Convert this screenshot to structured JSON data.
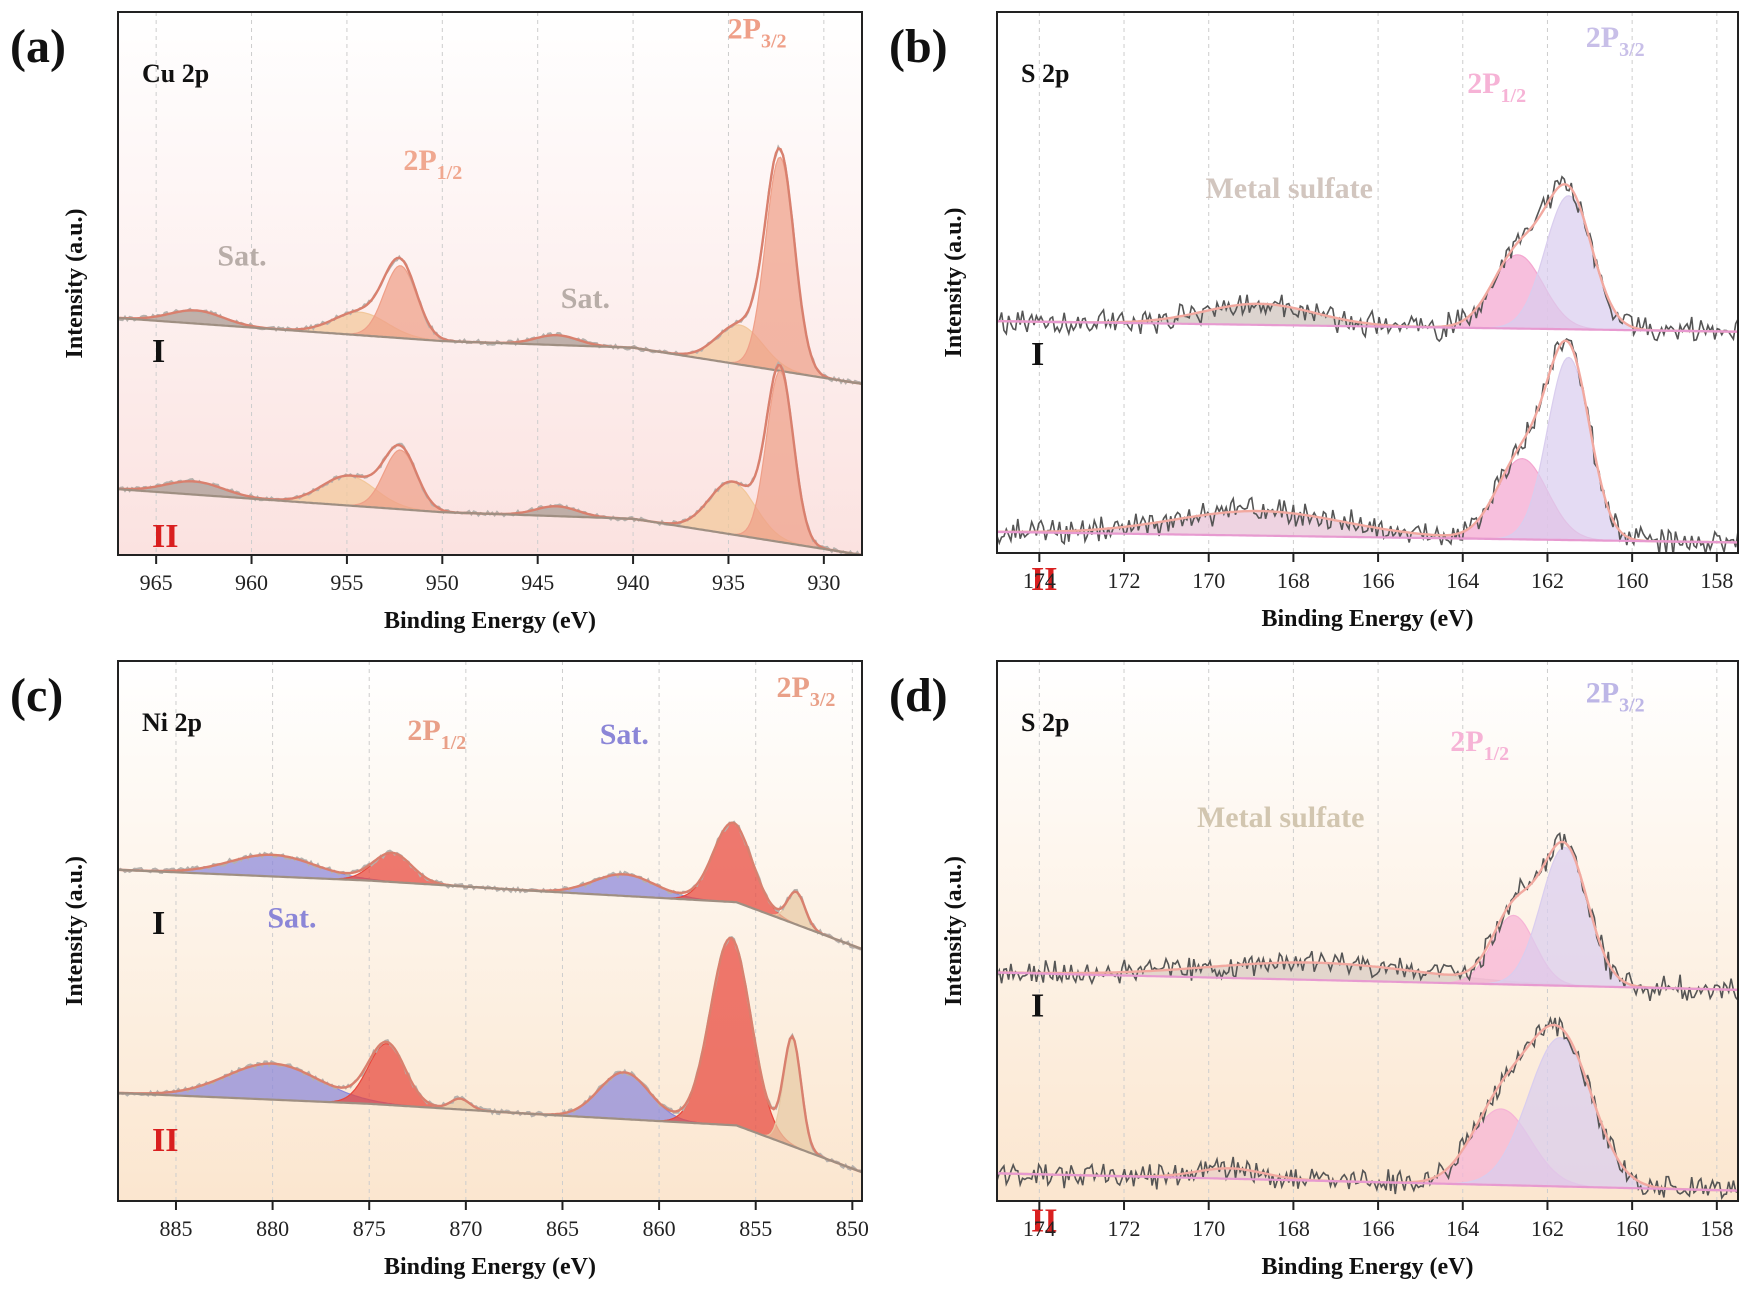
{
  "chart_data": [
    {
      "id": "a",
      "type": "line",
      "panel_label": "(a)",
      "element": "Cu 2p",
      "xlabel": "Binding Energy (eV)",
      "ylabel": "Intensity (a.u.)",
      "xlim": [
        967,
        928
      ],
      "xticks": [
        965,
        960,
        955,
        950,
        945,
        940,
        935,
        930
      ],
      "background": "pink",
      "baseline": [
        {
          "x": 967,
          "y": 0.0
        },
        {
          "x": 950,
          "y": -0.07
        },
        {
          "x": 940,
          "y": -0.09
        },
        {
          "x": 928,
          "y": -0.2
        }
      ],
      "spectra": [
        {
          "label": "I",
          "label_color": "#111111",
          "offset": 0.52,
          "components": [
            {
              "name": "Sat.",
              "center": 962.9,
              "height": 0.04,
              "width": 1.4,
              "color": "#a89890"
            },
            {
              "name": "Sat.",
              "center": 944.0,
              "height": 0.03,
              "width": 1.1,
              "color": "#a89890"
            },
            {
              "name": "2P1/2 satellite",
              "center": 954.3,
              "height": 0.07,
              "width": 1.4,
              "color": "#f2c79a"
            },
            {
              "name": "2P1/2",
              "center": 952.2,
              "height": 0.22,
              "width": 0.85,
              "color": "#ef9f88"
            },
            {
              "name": "2P3/2 satellite",
              "center": 934.4,
              "height": 0.12,
              "width": 1.2,
              "color": "#f2c79a"
            },
            {
              "name": "2P3/2",
              "center": 932.3,
              "height": 0.65,
              "width": 0.75,
              "color": "#ef9f88"
            }
          ]
        },
        {
          "label": "II",
          "label_color": "#d91f1f",
          "offset": 0.0,
          "components": [
            {
              "name": "Sat.",
              "center": 963.0,
              "height": 0.04,
              "width": 1.5,
              "color": "#a89890"
            },
            {
              "name": "Sat.",
              "center": 944.0,
              "height": 0.03,
              "width": 1.1,
              "color": "#a89890"
            },
            {
              "name": "2P1/2 satellite",
              "center": 954.9,
              "height": 0.09,
              "width": 1.4,
              "color": "#f2c79a"
            },
            {
              "name": "2P1/2",
              "center": 952.2,
              "height": 0.18,
              "width": 0.85,
              "color": "#ef9f88"
            },
            {
              "name": "2P3/2 satellite",
              "center": 934.8,
              "height": 0.16,
              "width": 1.2,
              "color": "#f2c79a"
            },
            {
              "name": "2P3/2",
              "center": 932.3,
              "height": 0.52,
              "width": 0.7,
              "color": "#ef9f88"
            }
          ]
        }
      ],
      "annotations": [
        {
          "text": "2P",
          "sub": "3/2",
          "x": 933.5,
          "y": 1.37,
          "color": "#ef9f88"
        },
        {
          "text": "2P",
          "sub": "1/2",
          "x": 950.5,
          "y": 0.97,
          "color": "#f0a890"
        },
        {
          "text": "Sat.",
          "x": 960.5,
          "y": 0.68,
          "color": "#b8ada8"
        },
        {
          "text": "Sat.",
          "x": 942.5,
          "y": 0.55,
          "color": "#b8ada8"
        }
      ]
    },
    {
      "id": "b",
      "type": "line",
      "panel_label": "(b)",
      "element": "S 2p",
      "xlabel": "Binding Energy (eV)",
      "ylabel": "Intensity (a.u.)",
      "xlim": [
        175,
        157.5
      ],
      "xticks": [
        174,
        172,
        170,
        168,
        166,
        164,
        162,
        160,
        158
      ],
      "background": "white",
      "baseline": [
        {
          "x": 175,
          "y": 0.0
        },
        {
          "x": 157.5,
          "y": -0.03
        }
      ],
      "spectra": [
        {
          "label": "I",
          "label_color": "#111111",
          "offset": 0.6,
          "components": [
            {
              "name": "Metal sulfate",
              "center": 168.8,
              "height": 0.06,
              "width": 1.3,
              "color": "#cfc3bd"
            },
            {
              "name": "2P1/2",
              "center": 162.7,
              "height": 0.21,
              "width": 0.6,
              "color": "#f4a6d0"
            },
            {
              "name": "2P3/2",
              "center": 161.5,
              "height": 0.38,
              "width": 0.55,
              "color": "#d9cdee"
            }
          ]
        },
        {
          "label": "II",
          "label_color": "#d91f1f",
          "offset": 0.0,
          "components": [
            {
              "name": "Metal sulfate",
              "center": 168.8,
              "height": 0.07,
              "width": 2.0,
              "color": "#e8c2d6"
            },
            {
              "name": "2P1/2",
              "center": 162.6,
              "height": 0.23,
              "width": 0.6,
              "color": "#f4a6d0"
            },
            {
              "name": "2P3/2",
              "center": 161.5,
              "height": 0.52,
              "width": 0.5,
              "color": "#d9cdee"
            }
          ]
        }
      ],
      "annotations": [
        {
          "text": "2P",
          "sub": "3/2",
          "x": 160.4,
          "y": 1.38,
          "color": "#c8bfe8"
        },
        {
          "text": "2P",
          "sub": "1/2",
          "x": 163.2,
          "y": 1.25,
          "color": "#f6b3d6"
        },
        {
          "text": "Metal sulfate",
          "x": 168.1,
          "y": 0.95,
          "color": "#d2c6bf"
        }
      ]
    },
    {
      "id": "c",
      "type": "line",
      "panel_label": "(c)",
      "element": "Ni 2p",
      "xlabel": "Binding Energy (eV)",
      "ylabel": "Intensity (a.u.)",
      "xlim": [
        888,
        849.5
      ],
      "xticks": [
        885,
        880,
        875,
        870,
        865,
        860,
        855,
        850
      ],
      "background": "peach",
      "baseline": [
        {
          "x": 888,
          "y": 0.0
        },
        {
          "x": 875,
          "y": -0.03
        },
        {
          "x": 866,
          "y": -0.06
        },
        {
          "x": 856,
          "y": -0.09
        },
        {
          "x": 849.5,
          "y": -0.22
        }
      ],
      "spectra": [
        {
          "label": "I",
          "label_color": "#111111",
          "offset": 0.62,
          "components": [
            {
              "name": "Sat.",
              "center": 880.0,
              "height": 0.06,
              "width": 2.2,
              "color": "#8a87da"
            },
            {
              "name": "2P1/2",
              "center": 873.8,
              "height": 0.08,
              "width": 1.0,
              "color": "#e8473c"
            },
            {
              "name": "Sat.",
              "center": 861.8,
              "height": 0.06,
              "width": 1.6,
              "color": "#8a87da"
            },
            {
              "name": "2P3/2",
              "center": 856.2,
              "height": 0.22,
              "width": 1.0,
              "color": "#e8473c"
            },
            {
              "name": "2P3/2 shoulder",
              "center": 852.9,
              "height": 0.09,
              "width": 0.45,
              "color": "#e8c9a4"
            }
          ]
        },
        {
          "label": "II",
          "label_color": "#d91f1f",
          "offset": 0.0,
          "components": [
            {
              "name": "Sat.",
              "center": 880.0,
              "height": 0.1,
              "width": 2.4,
              "color": "#8a87da"
            },
            {
              "name": "2P1/2",
              "center": 874.1,
              "height": 0.17,
              "width": 0.95,
              "color": "#e8473c"
            },
            {
              "name": "2P1/2 satellite",
              "center": 870.3,
              "height": 0.03,
              "width": 0.5,
              "color": "#e8c9a4"
            },
            {
              "name": "Sat.",
              "center": 861.8,
              "height": 0.13,
              "width": 1.3,
              "color": "#8a87da"
            },
            {
              "name": "2P3/2",
              "center": 856.3,
              "height": 0.52,
              "width": 1.05,
              "color": "#e8473c"
            },
            {
              "name": "2P3/2 shoulder",
              "center": 853.1,
              "height": 0.3,
              "width": 0.45,
              "color": "#e8c9a4"
            }
          ]
        }
      ],
      "annotations": [
        {
          "text": "2P",
          "sub": "3/2",
          "x": 852.4,
          "y": 1.1,
          "color": "#e9a088"
        },
        {
          "text": "2P",
          "sub": "1/2",
          "x": 871.5,
          "y": 0.98,
          "color": "#e9a088"
        },
        {
          "text": "Sat.",
          "x": 861.8,
          "y": 0.97,
          "color": "#8b86d7"
        },
        {
          "text": "Sat.",
          "x": 879.0,
          "y": 0.46,
          "color": "#8b86d7"
        }
      ]
    },
    {
      "id": "d",
      "type": "line",
      "panel_label": "(d)",
      "element": "S 2p",
      "xlabel": "Binding Energy (eV)",
      "ylabel": "Intensity (a.u.)",
      "xlim": [
        175,
        157.5
      ],
      "xticks": [
        174,
        172,
        170,
        168,
        166,
        164,
        162,
        160,
        158
      ],
      "background": "peach",
      "baseline": [
        {
          "x": 175,
          "y": 0.0
        },
        {
          "x": 157.5,
          "y": -0.05
        }
      ],
      "spectra": [
        {
          "label": "I",
          "label_color": "#111111",
          "offset": 0.58,
          "components": [
            {
              "name": "Metal sulfate",
              "center": 167.5,
              "height": 0.05,
              "width": 2.5,
              "color": "#d8ccc4"
            },
            {
              "name": "2P1/2",
              "center": 162.8,
              "height": 0.2,
              "width": 0.5,
              "color": "#f6b3d6"
            },
            {
              "name": "2P3/2",
              "center": 161.6,
              "height": 0.4,
              "width": 0.55,
              "color": "#d9cdee"
            }
          ]
        },
        {
          "label": "II",
          "label_color": "#d91f1f",
          "offset": 0.0,
          "components": [
            {
              "name": "Metal sulfate",
              "center": 169.5,
              "height": 0.03,
              "width": 0.8,
              "color": "#e8d0c8"
            },
            {
              "name": "2P1/2",
              "center": 163.1,
              "height": 0.22,
              "width": 0.7,
              "color": "#f6b3d6"
            },
            {
              "name": "2P3/2",
              "center": 161.7,
              "height": 0.43,
              "width": 0.75,
              "color": "#d9cdee"
            }
          ]
        }
      ],
      "annotations": [
        {
          "text": "2P",
          "sub": "3/2",
          "x": 160.4,
          "y": 1.36,
          "color": "#bdb6e6"
        },
        {
          "text": "2P",
          "sub": "1/2",
          "x": 163.6,
          "y": 1.22,
          "color": "#f6b3d6"
        },
        {
          "text": "Metal sulfate",
          "x": 168.3,
          "y": 1.0,
          "color": "#d2c6b0"
        }
      ]
    }
  ]
}
